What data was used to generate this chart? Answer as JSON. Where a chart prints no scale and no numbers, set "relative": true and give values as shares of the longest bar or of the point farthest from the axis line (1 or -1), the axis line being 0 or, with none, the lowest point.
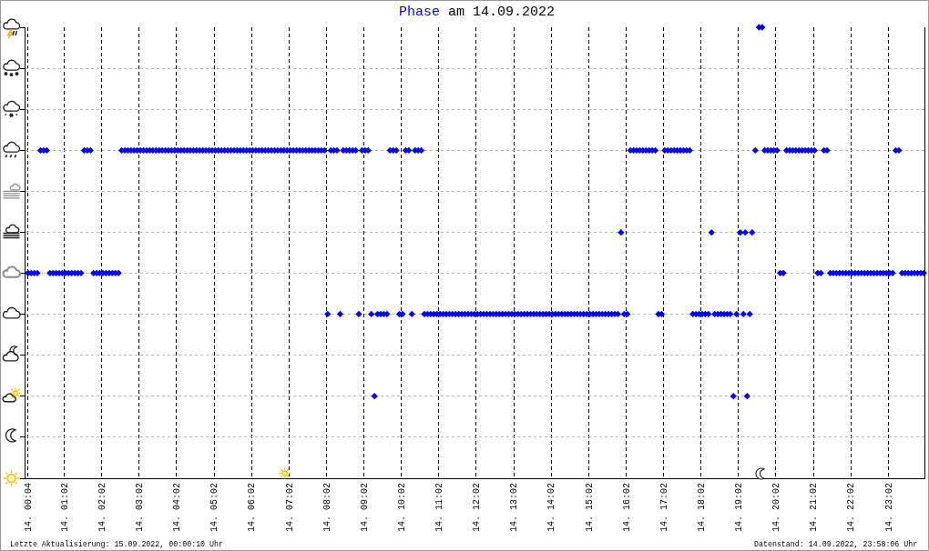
{
  "chart_data": {
    "type": "scatter",
    "title": "am 14.09.2022",
    "relative": true,
    "series": [
      {
        "name": "Phase",
        "color": "#0000ff",
        "x": [
          "2022-09-14T00:04",
          "2022-09-14T00:09",
          "2022-09-14T00:14",
          "2022-09-14T00:19",
          "2022-09-14T00:24",
          "2022-09-14T00:29",
          "2022-09-14T00:34",
          "2022-09-14T00:39",
          "2022-09-14T00:44",
          "2022-09-14T00:49",
          "2022-09-14T00:54",
          "2022-09-14T00:59",
          "2022-09-14T01:04",
          "2022-09-14T01:09",
          "2022-09-14T01:14",
          "2022-09-14T01:19",
          "2022-09-14T01:24",
          "2022-09-14T01:29",
          "2022-09-14T01:34",
          "2022-09-14T01:39",
          "2022-09-14T01:44",
          "2022-09-14T01:49",
          "2022-09-14T01:54",
          "2022-09-14T01:59",
          "2022-09-14T02:04",
          "2022-09-14T02:09",
          "2022-09-14T02:14",
          "2022-09-14T02:19",
          "2022-09-14T02:24",
          "2022-09-14T02:29",
          "2022-09-14T02:34",
          "2022-09-14T02:39",
          "2022-09-14T02:44",
          "2022-09-14T02:49",
          "2022-09-14T02:54",
          "2022-09-14T02:59",
          "2022-09-14T03:04",
          "2022-09-14T03:09",
          "2022-09-14T03:14",
          "2022-09-14T03:19",
          "2022-09-14T03:24",
          "2022-09-14T03:29",
          "2022-09-14T03:34",
          "2022-09-14T03:39",
          "2022-09-14T03:44",
          "2022-09-14T03:49",
          "2022-09-14T03:54",
          "2022-09-14T03:59",
          "2022-09-14T04:04",
          "2022-09-14T04:09",
          "2022-09-14T04:14",
          "2022-09-14T04:19",
          "2022-09-14T04:24",
          "2022-09-14T04:29",
          "2022-09-14T04:34",
          "2022-09-14T04:39",
          "2022-09-14T04:44",
          "2022-09-14T04:49",
          "2022-09-14T04:54",
          "2022-09-14T04:59",
          "2022-09-14T05:04",
          "2022-09-14T05:09",
          "2022-09-14T05:14",
          "2022-09-14T05:19",
          "2022-09-14T05:24",
          "2022-09-14T05:29",
          "2022-09-14T05:34",
          "2022-09-14T05:39",
          "2022-09-14T05:44",
          "2022-09-14T05:49",
          "2022-09-14T05:54",
          "2022-09-14T05:59",
          "2022-09-14T06:04",
          "2022-09-14T06:09",
          "2022-09-14T06:14",
          "2022-09-14T06:19",
          "2022-09-14T06:24",
          "2022-09-14T06:29",
          "2022-09-14T06:34",
          "2022-09-14T06:39",
          "2022-09-14T06:44",
          "2022-09-14T06:49",
          "2022-09-14T06:54",
          "2022-09-14T06:59",
          "2022-09-14T07:04",
          "2022-09-14T07:09",
          "2022-09-14T07:14",
          "2022-09-14T07:19",
          "2022-09-14T07:24",
          "2022-09-14T07:29",
          "2022-09-14T07:34",
          "2022-09-14T07:39",
          "2022-09-14T07:44",
          "2022-09-14T07:49",
          "2022-09-14T07:54",
          "2022-09-14T07:59",
          "2022-09-14T08:04",
          "2022-09-14T08:09",
          "2022-09-14T08:14",
          "2022-09-14T08:19",
          "2022-09-14T08:24",
          "2022-09-14T08:29",
          "2022-09-14T08:34",
          "2022-09-14T08:39",
          "2022-09-14T08:44",
          "2022-09-14T08:49",
          "2022-09-14T08:54",
          "2022-09-14T08:59",
          "2022-09-14T09:04",
          "2022-09-14T09:09",
          "2022-09-14T09:14",
          "2022-09-14T09:19",
          "2022-09-14T09:24",
          "2022-09-14T09:29",
          "2022-09-14T09:34",
          "2022-09-14T09:39",
          "2022-09-14T09:44",
          "2022-09-14T09:49",
          "2022-09-14T09:54",
          "2022-09-14T09:59",
          "2022-09-14T10:04",
          "2022-09-14T10:09",
          "2022-09-14T10:14",
          "2022-09-14T10:19",
          "2022-09-14T10:24",
          "2022-09-14T10:29",
          "2022-09-14T10:34",
          "2022-09-14T10:39",
          "2022-09-14T10:44",
          "2022-09-14T10:49",
          "2022-09-14T10:54",
          "2022-09-14T10:59",
          "2022-09-14T11:04",
          "2022-09-14T11:09",
          "2022-09-14T11:14",
          "2022-09-14T11:19",
          "2022-09-14T11:24",
          "2022-09-14T11:29",
          "2022-09-14T11:34",
          "2022-09-14T11:39",
          "2022-09-14T11:44",
          "2022-09-14T11:49",
          "2022-09-14T11:54",
          "2022-09-14T11:59",
          "2022-09-14T12:04",
          "2022-09-14T12:09",
          "2022-09-14T12:14",
          "2022-09-14T12:19",
          "2022-09-14T12:24",
          "2022-09-14T12:29",
          "2022-09-14T12:34",
          "2022-09-14T12:39",
          "2022-09-14T12:44",
          "2022-09-14T12:49",
          "2022-09-14T12:54",
          "2022-09-14T12:59",
          "2022-09-14T13:04",
          "2022-09-14T13:09",
          "2022-09-14T13:14",
          "2022-09-14T13:19",
          "2022-09-14T13:24",
          "2022-09-14T13:29",
          "2022-09-14T13:34",
          "2022-09-14T13:39",
          "2022-09-14T13:44",
          "2022-09-14T13:49",
          "2022-09-14T13:54",
          "2022-09-14T13:59",
          "2022-09-14T14:04",
          "2022-09-14T14:09",
          "2022-09-14T14:14",
          "2022-09-14T14:19",
          "2022-09-14T14:24",
          "2022-09-14T14:29",
          "2022-09-14T14:34",
          "2022-09-14T14:39",
          "2022-09-14T14:44",
          "2022-09-14T14:49",
          "2022-09-14T14:54",
          "2022-09-14T14:59",
          "2022-09-14T15:04",
          "2022-09-14T15:09",
          "2022-09-14T15:14",
          "2022-09-14T15:19",
          "2022-09-14T15:24",
          "2022-09-14T15:29",
          "2022-09-14T15:34",
          "2022-09-14T15:39",
          "2022-09-14T15:44",
          "2022-09-14T15:49",
          "2022-09-14T15:54",
          "2022-09-14T15:59",
          "2022-09-14T16:04",
          "2022-09-14T16:09",
          "2022-09-14T16:14",
          "2022-09-14T16:19",
          "2022-09-14T16:24",
          "2022-09-14T16:29",
          "2022-09-14T16:34",
          "2022-09-14T16:39",
          "2022-09-14T16:44",
          "2022-09-14T16:49",
          "2022-09-14T16:54",
          "2022-09-14T16:59",
          "2022-09-14T17:04",
          "2022-09-14T17:09",
          "2022-09-14T17:14",
          "2022-09-14T17:19",
          "2022-09-14T17:24",
          "2022-09-14T17:29",
          "2022-09-14T17:34",
          "2022-09-14T17:39",
          "2022-09-14T17:44",
          "2022-09-14T17:49",
          "2022-09-14T17:54",
          "2022-09-14T17:59",
          "2022-09-14T18:04",
          "2022-09-14T18:09",
          "2022-09-14T18:14",
          "2022-09-14T18:19",
          "2022-09-14T18:24",
          "2022-09-14T18:29",
          "2022-09-14T18:34",
          "2022-09-14T18:39",
          "2022-09-14T18:44",
          "2022-09-14T18:49",
          "2022-09-14T18:54",
          "2022-09-14T18:59",
          "2022-09-14T19:05",
          "2022-09-14T19:10",
          "2022-09-14T19:13",
          "2022-09-14T19:16",
          "2022-09-14T19:20",
          "2022-09-14T19:24",
          "2022-09-14T19:29",
          "2022-09-14T19:35",
          "2022-09-14T19:40",
          "2022-09-14T19:44",
          "2022-09-14T19:49",
          "2022-09-14T19:54",
          "2022-09-14T19:59",
          "2022-09-14T20:04",
          "2022-09-14T20:09",
          "2022-09-14T20:14",
          "2022-09-14T20:19",
          "2022-09-14T20:24",
          "2022-09-14T20:29",
          "2022-09-14T20:34",
          "2022-09-14T20:39",
          "2022-09-14T20:44",
          "2022-09-14T20:49",
          "2022-09-14T20:54",
          "2022-09-14T20:59",
          "2022-09-14T21:04",
          "2022-09-14T21:09",
          "2022-09-14T21:14",
          "2022-09-14T21:19",
          "2022-09-14T21:24",
          "2022-09-14T21:29",
          "2022-09-14T21:34",
          "2022-09-14T21:39",
          "2022-09-14T21:44",
          "2022-09-14T21:49",
          "2022-09-14T21:54",
          "2022-09-14T21:59",
          "2022-09-14T22:04",
          "2022-09-14T22:09",
          "2022-09-14T22:14",
          "2022-09-14T22:19",
          "2022-09-14T22:24",
          "2022-09-14T22:29",
          "2022-09-14T22:34",
          "2022-09-14T22:39",
          "2022-09-14T22:44",
          "2022-09-14T22:49",
          "2022-09-14T22:54",
          "2022-09-14T22:59",
          "2022-09-14T23:04",
          "2022-09-14T23:09",
          "2022-09-14T23:14",
          "2022-09-14T23:19",
          "2022-09-14T23:24",
          "2022-09-14T23:29",
          "2022-09-14T23:34",
          "2022-09-14T23:39",
          "2022-09-14T23:44",
          "2022-09-14T23:49",
          "2022-09-14T23:54",
          "2022-09-14T23:59"
        ],
        "values": [
          0.455,
          0.455,
          0.455,
          0.455,
          0.727,
          0.727,
          0.727,
          0.455,
          0.455,
          0.455,
          0.455,
          0.455,
          0.455,
          0.455,
          0.455,
          0.455,
          0.455,
          0.455,
          0.727,
          0.727,
          0.727,
          0.455,
          0.455,
          0.455,
          0.455,
          0.455,
          0.455,
          0.455,
          0.455,
          0.455,
          0.727,
          0.727,
          0.727,
          0.727,
          0.727,
          0.727,
          0.727,
          0.727,
          0.727,
          0.727,
          0.727,
          0.727,
          0.727,
          0.727,
          0.727,
          0.727,
          0.727,
          0.727,
          0.727,
          0.727,
          0.727,
          0.727,
          0.727,
          0.727,
          0.727,
          0.727,
          0.727,
          0.727,
          0.727,
          0.727,
          0.727,
          0.727,
          0.727,
          0.727,
          0.727,
          0.727,
          0.727,
          0.727,
          0.727,
          0.727,
          0.727,
          0.727,
          0.727,
          0.727,
          0.727,
          0.727,
          0.727,
          0.727,
          0.727,
          0.727,
          0.727,
          0.727,
          0.727,
          0.727,
          0.727,
          0.727,
          0.727,
          0.727,
          0.727,
          0.727,
          0.727,
          0.727,
          0.727,
          0.727,
          0.727,
          0.727,
          0.364,
          0.727,
          0.727,
          0.727,
          0.364,
          0.727,
          0.727,
          0.727,
          0.727,
          0.727,
          0.364,
          0.727,
          0.727,
          0.727,
          0.364,
          0.182,
          0.364,
          0.364,
          0.364,
          0.364,
          0.727,
          0.727,
          0.727,
          0.364,
          0.364,
          0.727,
          0.727,
          0.364,
          0.727,
          0.727,
          0.727,
          0.364,
          0.364,
          0.364,
          0.364,
          0.364,
          0.364,
          0.364,
          0.364,
          0.364,
          0.364,
          0.364,
          0.364,
          0.364,
          0.364,
          0.364,
          0.364,
          0.364,
          0.364,
          0.364,
          0.364,
          0.364,
          0.364,
          0.364,
          0.364,
          0.364,
          0.364,
          0.364,
          0.364,
          0.364,
          0.364,
          0.364,
          0.364,
          0.364,
          0.364,
          0.364,
          0.364,
          0.364,
          0.364,
          0.364,
          0.364,
          0.364,
          0.364,
          0.364,
          0.364,
          0.364,
          0.364,
          0.364,
          0.364,
          0.364,
          0.364,
          0.364,
          0.364,
          0.364,
          0.364,
          0.364,
          0.364,
          0.364,
          0.364,
          0.364,
          0.364,
          0.364,
          0.364,
          0.364,
          0.545,
          0.364,
          0.364,
          0.727,
          0.727,
          0.727,
          0.727,
          0.727,
          0.727,
          0.727,
          0.727,
          0.727,
          0.364,
          0.364,
          0.727,
          0.727,
          0.727,
          0.727,
          0.727,
          0.727,
          0.727,
          0.727,
          0.727,
          0.364,
          0.364,
          0.364,
          0.364,
          0.364,
          0.364,
          0.545,
          0.364,
          0.364,
          0.364,
          0.364,
          0.364,
          0.364,
          0.182,
          0.364,
          0.545,
          0.364,
          0.545,
          0.182,
          0.364,
          0.545,
          0.727,
          1,
          1,
          0.727,
          0.727,
          0.727,
          0.727,
          0.727,
          0.455,
          0.455,
          0.727,
          0.727,
          0.727,
          0.727,
          0.727,
          0.727,
          0.727,
          0.727,
          0.727,
          0.727,
          0.455,
          0.455,
          0.727,
          0.727,
          0.455,
          0.455,
          0.455,
          0.455,
          0.455,
          0.455,
          0.455,
          0.455,
          0.455,
          0.455,
          0.455,
          0.455,
          0.455,
          0.455,
          0.455,
          0.455,
          0.455,
          0.455,
          0.455,
          0.455,
          0.455,
          0.727,
          0.727,
          0.455,
          0.455,
          0.455,
          0.455,
          0.455,
          0.455,
          0.455,
          0.455
        ]
      }
    ],
    "marker": "diamond",
    "xlim": [
      "2022-09-14T00:00",
      "2022-09-15T00:00"
    ],
    "xticks": [
      {
        "value": "2022-09-14T00:04",
        "label": "14. 00:04"
      },
      {
        "value": "2022-09-14T01:02",
        "label": "14. 01:02"
      },
      {
        "value": "2022-09-14T02:02",
        "label": "14. 02:02"
      },
      {
        "value": "2022-09-14T03:02",
        "label": "14. 03:02"
      },
      {
        "value": "2022-09-14T04:02",
        "label": "14. 04:02"
      },
      {
        "value": "2022-09-14T05:02",
        "label": "14. 05:02"
      },
      {
        "value": "2022-09-14T06:02",
        "label": "14. 06:02"
      },
      {
        "value": "2022-09-14T07:02",
        "label": "14. 07:02"
      },
      {
        "value": "2022-09-14T08:02",
        "label": "14. 08:02"
      },
      {
        "value": "2022-09-14T09:02",
        "label": "14. 09:02"
      },
      {
        "value": "2022-09-14T10:02",
        "label": "14. 10:02"
      },
      {
        "value": "2022-09-14T11:02",
        "label": "14. 11:02"
      },
      {
        "value": "2022-09-14T12:02",
        "label": "14. 12:02"
      },
      {
        "value": "2022-09-14T13:02",
        "label": "14. 13:02"
      },
      {
        "value": "2022-09-14T14:02",
        "label": "14. 14:02"
      },
      {
        "value": "2022-09-14T15:02",
        "label": "14. 15:02"
      },
      {
        "value": "2022-09-14T16:02",
        "label": "14. 16:02"
      },
      {
        "value": "2022-09-14T17:02",
        "label": "14. 17:02"
      },
      {
        "value": "2022-09-14T18:02",
        "label": "14. 18:02"
      },
      {
        "value": "2022-09-14T19:02",
        "label": "14. 19:02"
      },
      {
        "value": "2022-09-14T20:02",
        "label": "14. 20:02"
      },
      {
        "value": "2022-09-14T21:02",
        "label": "14. 21:02"
      },
      {
        "value": "2022-09-14T22:02",
        "label": "14. 22:02"
      },
      {
        "value": "2022-09-14T23:02",
        "label": "14. 23:02"
      }
    ],
    "grid": true,
    "annotations": [
      "Letzte Aktualisierung: 15.09.2022, 00:00:10 Uhr",
      "Datenstand: 14.09.2022, 23:58:06 Uhr"
    ]
  }
}
